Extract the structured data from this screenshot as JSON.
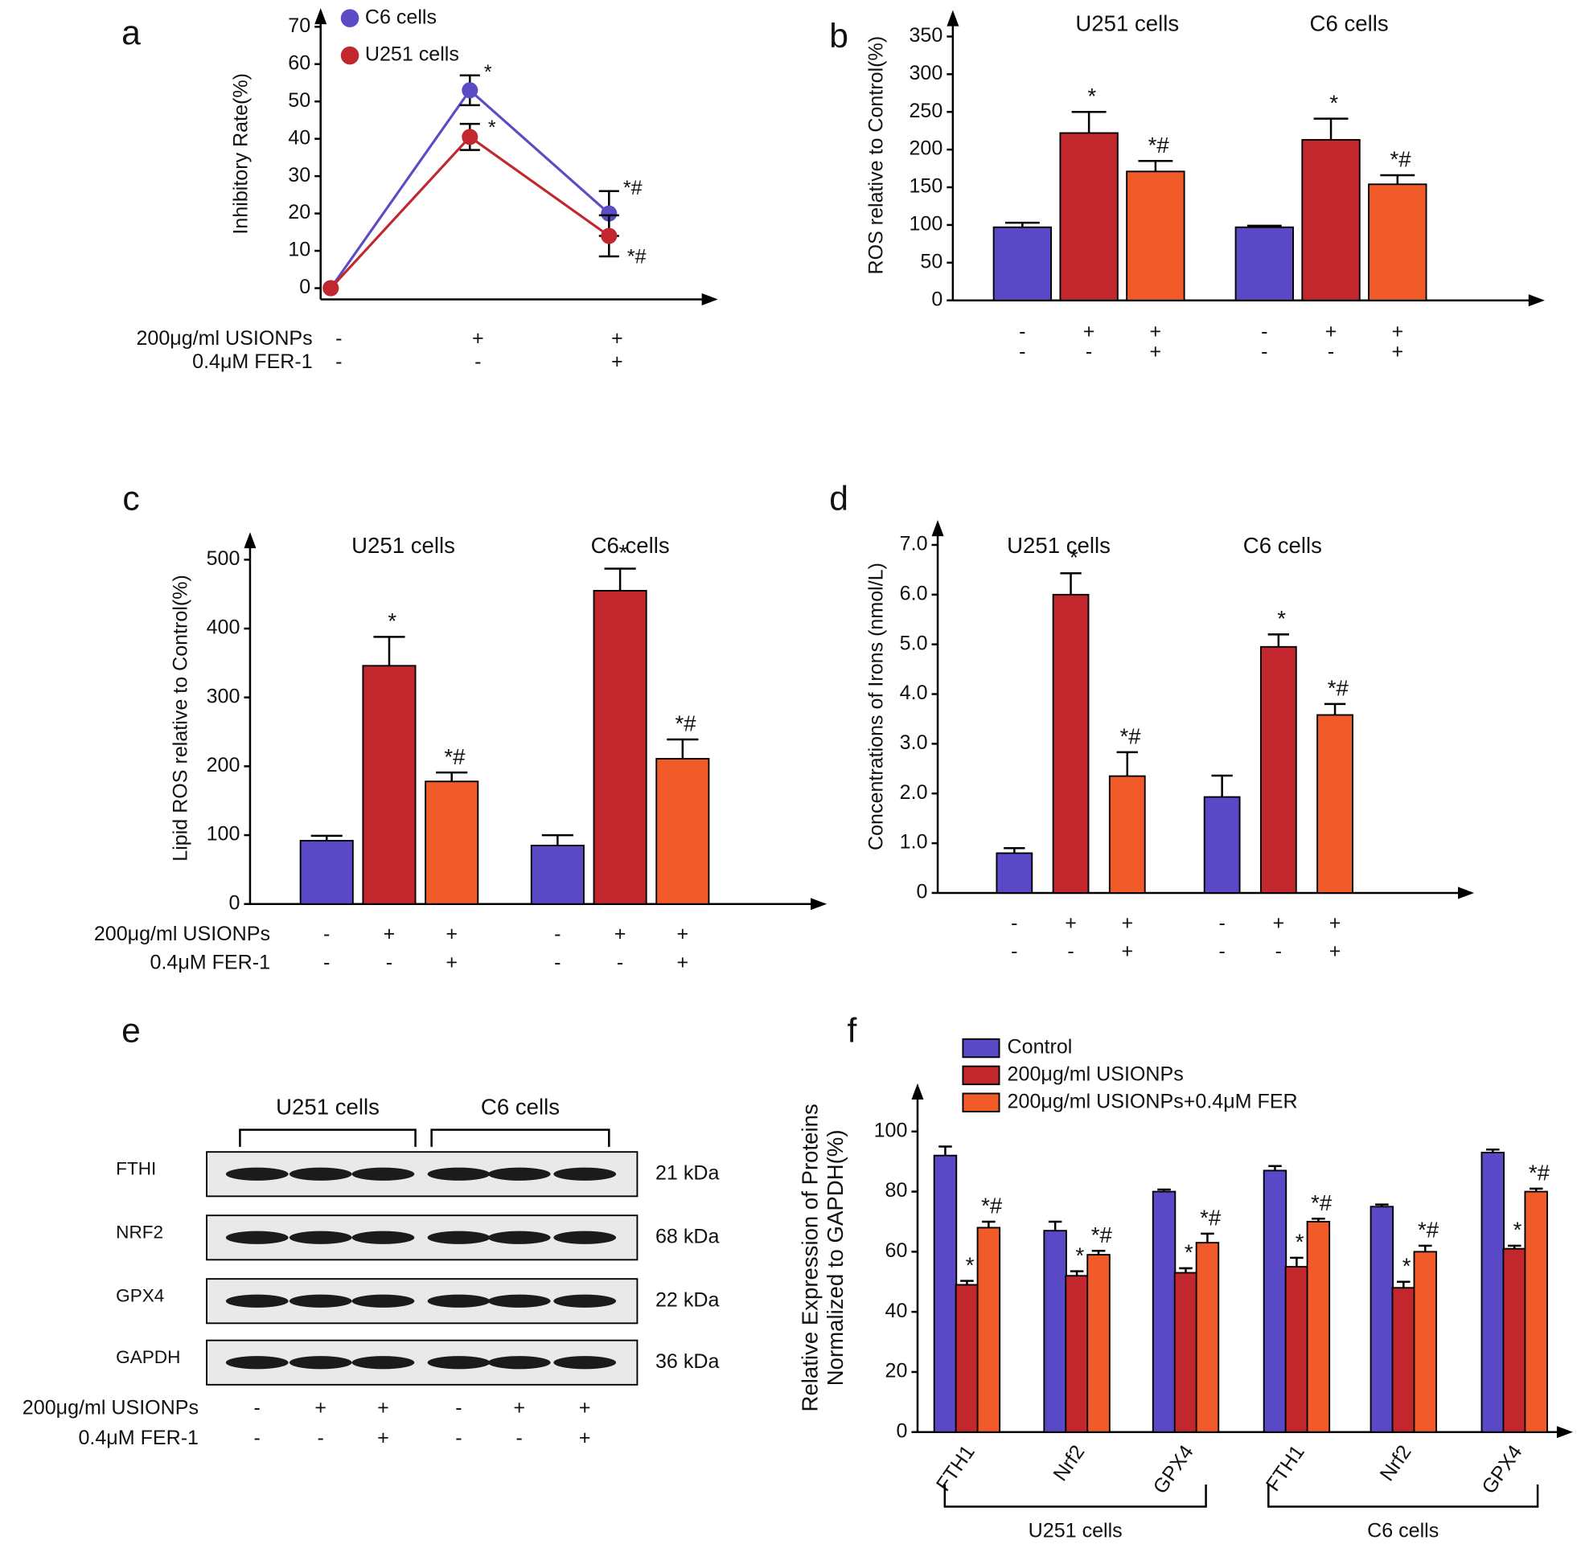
{
  "chart_data": [
    {
      "type": "line",
      "label": "a",
      "ylabel": "Inhibitory Rate(%)",
      "categories": [
        null,
        null,
        null
      ],
      "series": [
        {
          "name": "C6 cells",
          "color": "#5b4bc4",
          "values": [
            0,
            53,
            20
          ],
          "errors": [
            null,
            4,
            6
          ],
          "annotations": [
            null,
            "*",
            "*#"
          ]
        },
        {
          "name": "U251 cells",
          "color": "#c1272d",
          "values": [
            0,
            40.5,
            14
          ],
          "errors": [
            null,
            3.5,
            5.5
          ],
          "annotations": [
            null,
            "*",
            "*#"
          ]
        }
      ],
      "ylim": [
        -3,
        75
      ],
      "yticks": [
        0,
        10,
        20,
        30,
        40,
        50,
        60,
        70
      ],
      "conditions": [
        {
          "name": "200μg/ml USIONPs",
          "signs": [
            "-",
            "+",
            "+"
          ]
        },
        {
          "name": "0.4μM FER-1",
          "signs": [
            "-",
            "-",
            "+"
          ]
        }
      ]
    },
    {
      "type": "bar",
      "label": "b",
      "ylabel": "ROS relative to Control(%)",
      "categories": [
        "U251 cells",
        "C6 cells"
      ],
      "series": [
        {
          "color": "#5a49c6",
          "values": [
            97,
            97
          ],
          "errors": [
            6,
            2
          ],
          "annotations": [
            null,
            null
          ]
        },
        {
          "color": "#c1272d",
          "values": [
            222,
            213
          ],
          "errors": [
            28,
            28
          ],
          "annotations": [
            "*",
            "*"
          ]
        },
        {
          "color": "#f15a29",
          "values": [
            171,
            154
          ],
          "errors": [
            14,
            12
          ],
          "annotations": [
            "*#",
            "*#"
          ]
        }
      ],
      "ylim": [
        0,
        385
      ],
      "yticks": [
        0,
        50,
        100,
        150,
        200,
        250,
        300,
        350
      ],
      "conditions": [
        {
          "signs": [
            "-",
            "+",
            "+",
            "-",
            "+",
            "+"
          ]
        },
        {
          "signs": [
            "-",
            "-",
            "+",
            "-",
            "-",
            "+"
          ]
        }
      ]
    },
    {
      "type": "bar",
      "label": "c",
      "ylabel": "Lipid ROS relative  to Control(%)",
      "categories": [
        "U251 cells",
        "C6 cells"
      ],
      "series": [
        {
          "color": "#5a49c6",
          "values": [
            92,
            85
          ],
          "errors": [
            7,
            15
          ],
          "annotations": [
            null,
            null
          ]
        },
        {
          "color": "#c1272d",
          "values": [
            346,
            455
          ],
          "errors": [
            42,
            32
          ],
          "annotations": [
            "*",
            "*"
          ]
        },
        {
          "color": "#f15a29",
          "values": [
            178,
            211
          ],
          "errors": [
            13,
            28
          ],
          "annotations": [
            "*#",
            "*#"
          ]
        }
      ],
      "ylim": [
        0,
        540
      ],
      "yticks": [
        0,
        100,
        200,
        300,
        400,
        500
      ],
      "conditions": [
        {
          "name": "200μg/ml USIONPs",
          "signs": [
            "-",
            "+",
            "+",
            "-",
            "+",
            "+"
          ]
        },
        {
          "name": "0.4μM FER-1",
          "signs": [
            "-",
            "-",
            "+",
            "-",
            "-",
            "+"
          ]
        }
      ]
    },
    {
      "type": "bar",
      "label": "d",
      "ylabel": "Concentrations of Irons (nmol/L)",
      "categories": [
        "U251 cells",
        "C6 cells"
      ],
      "series": [
        {
          "color": "#5a49c6",
          "values": [
            0.8,
            1.93
          ],
          "errors": [
            0.1,
            0.43
          ],
          "annotations": [
            null,
            null
          ]
        },
        {
          "color": "#c1272d",
          "values": [
            6.0,
            4.95
          ],
          "errors": [
            0.43,
            0.25
          ],
          "annotations": [
            "*",
            "*"
          ]
        },
        {
          "color": "#f15a29",
          "values": [
            2.35,
            3.58
          ],
          "errors": [
            0.48,
            0.22
          ],
          "annotations": [
            "*#",
            "*#"
          ]
        }
      ],
      "ylim": [
        0,
        7.5
      ],
      "yticks": [
        0,
        {
          "value": 1,
          "label": "1.0"
        },
        {
          "value": 2,
          "label": "2.0"
        },
        {
          "value": 3,
          "label": "3.0"
        },
        {
          "value": 4,
          "label": "4.0"
        },
        {
          "value": 5,
          "label": "5.0"
        },
        {
          "value": 6,
          "label": "6.0"
        },
        {
          "value": 7,
          "label": "7.0"
        }
      ],
      "conditions": [
        {
          "signs": [
            "-",
            "+",
            "+",
            "-",
            "+",
            "+"
          ]
        },
        {
          "signs": [
            "-",
            "-",
            "+",
            "-",
            "-",
            "+"
          ]
        }
      ]
    },
    {
      "type": "bar",
      "label": "f",
      "ylabel": [
        "Relative Expression of Proteins",
        "Normalized to GAPDH(%)"
      ],
      "categories": [
        "FTH1",
        "Nrf2",
        "GPX4",
        "FTH1",
        "Nrf2",
        "GPX4"
      ],
      "groups": [
        "U251 cells",
        "C6 cells"
      ],
      "series": [
        {
          "name": "Control",
          "color": "#5a49c6",
          "values": [
            92,
            67,
            80,
            87,
            75,
            93
          ],
          "errors": [
            3,
            3,
            0.7,
            1.5,
            0.7,
            1
          ],
          "annotations": [
            null,
            null,
            null,
            null,
            null,
            null
          ]
        },
        {
          "name": "200μg/ml USIONPs",
          "color": "#c1272d",
          "values": [
            49,
            52,
            53,
            55,
            48,
            61
          ],
          "errors": [
            1.3,
            1.5,
            1.5,
            3,
            2,
            1
          ],
          "annotations": [
            "*",
            "*",
            "*",
            "*",
            "*",
            "*"
          ]
        },
        {
          "name": "200μg/ml USIONPs+0.4μM FER",
          "color": "#f15a29",
          "values": [
            68,
            59,
            63,
            70,
            60,
            80
          ],
          "errors": [
            2,
            1.3,
            3,
            1,
            2,
            1
          ],
          "annotations": [
            "*#",
            "*#",
            "*#",
            "*#",
            "*#",
            "*#"
          ]
        }
      ],
      "ylim": [
        0,
        116
      ],
      "yticks": [
        0,
        20,
        40,
        60,
        80,
        100
      ]
    }
  ],
  "blot": {
    "label": "e",
    "groups": [
      "U251 cells",
      "C6 cells"
    ],
    "rows": [
      {
        "name": "FTHI",
        "size": "21 kDa"
      },
      {
        "name": "NRF2",
        "size": "68 kDa"
      },
      {
        "name": "GPX4",
        "size": "22 kDa"
      },
      {
        "name": "GAPDH",
        "size": "36 kDa"
      }
    ],
    "conditions": [
      {
        "name": "200μg/ml USIONPs",
        "signs": [
          "-",
          "+",
          "+",
          "-",
          "+",
          "+"
        ]
      },
      {
        "name": "0.4μM FER-1",
        "signs": [
          "-",
          "-",
          "+",
          "-",
          "-",
          "+"
        ]
      }
    ]
  }
}
